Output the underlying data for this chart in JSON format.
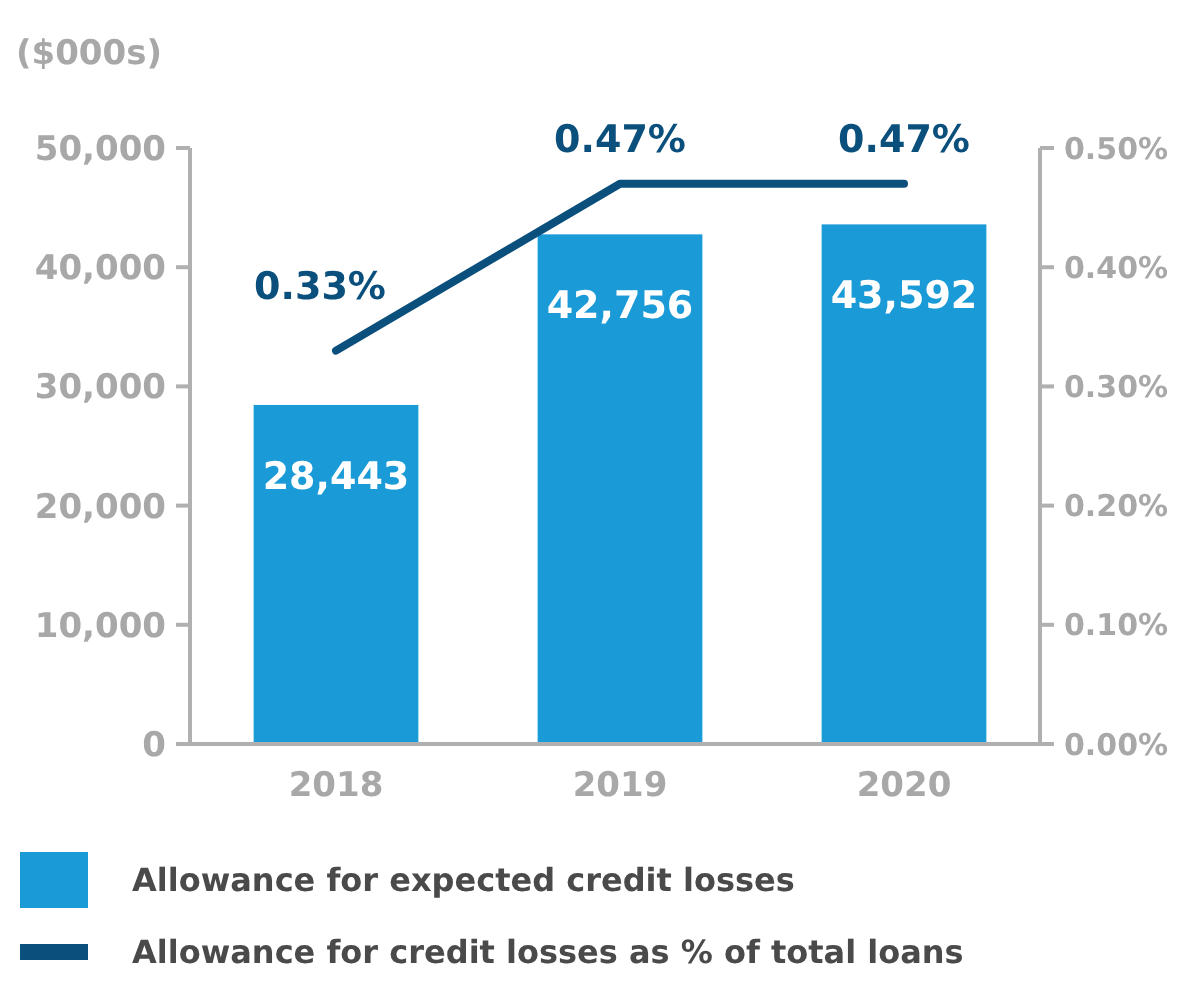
{
  "chart_data": {
    "type": "bar",
    "ylabel": "($000s)",
    "categories": [
      "2018",
      "2019",
      "2020"
    ],
    "series": [
      {
        "name": "Allowance for expected credit losses",
        "color": "#1a9ad6",
        "values": [
          28443,
          42756,
          43592
        ],
        "value_labels": [
          "28,443",
          "42,756",
          "43,592"
        ]
      },
      {
        "name": "Allowance for credit losses as % of total loans",
        "type": "line",
        "axis": "y2",
        "color": "#0b4f7c",
        "values": [
          0.33,
          0.47,
          0.47
        ],
        "value_labels": [
          "0.33%",
          "0.47%",
          "0.47%"
        ]
      }
    ],
    "ylim": [
      0,
      50000
    ],
    "yticks": [
      0,
      {
        "value": 10000,
        "label": "10,000"
      },
      {
        "value": 20000,
        "label": "20,000"
      },
      {
        "value": 30000,
        "label": "30,000"
      },
      {
        "value": 40000,
        "label": "40,000"
      },
      {
        "value": 50000,
        "label": "50,000"
      }
    ],
    "y2lim": [
      0,
      0.5
    ],
    "y2ticks": [
      {
        "value": 0,
        "label": "0.00%"
      },
      {
        "value": 0.1,
        "label": "0.10%"
      },
      {
        "value": 0.2,
        "label": "0.20%"
      },
      {
        "value": 0.3,
        "label": "0.30%"
      },
      {
        "value": 0.4,
        "label": "0.40%"
      },
      {
        "value": 0.5,
        "label": "0.50%"
      }
    ],
    "legend": "bottom"
  }
}
